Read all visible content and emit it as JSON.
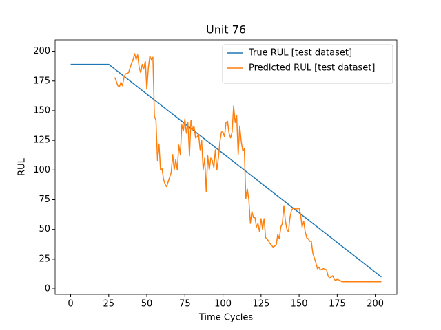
{
  "chart_data": {
    "type": "line",
    "title": "Unit 76",
    "x_label": "Time Cycles",
    "y_label": "RUL",
    "xlim": [
      -10.2,
      214.2
    ],
    "ylim": [
      -4.6,
      209.6
    ],
    "xticks": [
      0,
      25,
      50,
      75,
      100,
      125,
      150,
      175,
      200
    ],
    "yticks": [
      0,
      25,
      50,
      75,
      100,
      125,
      150,
      175,
      200
    ],
    "legend": "upper right",
    "series": [
      {
        "name": "True RUL [test dataset]",
        "color": "#1f77b4",
        "x": [
          0,
          25,
          204
        ],
        "values": [
          189,
          189,
          10
        ]
      },
      {
        "name": "Predicted RUL [test dataset]",
        "color": "#ff7f0e",
        "x": [
          29,
          31,
          32,
          33,
          34,
          35,
          36,
          38,
          40,
          41,
          42,
          43,
          44,
          45,
          46,
          47,
          48,
          49,
          50,
          51,
          52,
          53,
          54,
          55,
          56,
          57,
          58,
          59,
          60,
          61,
          62,
          63,
          64,
          66,
          67,
          68,
          69,
          70,
          71,
          72,
          73,
          74,
          75,
          76,
          77,
          78,
          79,
          80,
          81,
          82,
          83,
          84,
          85,
          86,
          87,
          88,
          89,
          90,
          91,
          92,
          93,
          94,
          95,
          96,
          97,
          98,
          99,
          100,
          101,
          102,
          103,
          104,
          105,
          106,
          107,
          108,
          109,
          110,
          111,
          112,
          113,
          114,
          115,
          116,
          117,
          118,
          119,
          120,
          121,
          122,
          123,
          124,
          125,
          126,
          127,
          128,
          129,
          131,
          133,
          135,
          136,
          137,
          138,
          139,
          140,
          141,
          142,
          143,
          144,
          145,
          146,
          148,
          150,
          151,
          152,
          153,
          154,
          155,
          156,
          157,
          158,
          159,
          160,
          161,
          162,
          163,
          164,
          166,
          168,
          169,
          170,
          171,
          172,
          173,
          174,
          175,
          177,
          178,
          180,
          204
        ],
        "values": [
          178,
          171,
          170,
          174,
          171,
          178,
          181,
          182,
          190,
          193,
          198,
          193,
          197,
          186,
          182,
          189,
          185,
          192,
          168,
          186,
          196,
          193,
          195,
          145,
          142,
          108,
          122,
          100,
          101,
          92,
          88,
          86,
          90,
          98,
          113,
          100,
          109,
          100,
          121,
          113,
          138,
          133,
          143,
          131,
          140,
          112,
          142,
          134,
          137,
          127,
          128,
          130,
          117,
          125,
          100,
          110,
          82,
          112,
          100,
          110,
          108,
          102,
          117,
          100,
          110,
          124,
          132,
          132,
          128,
          140,
          141,
          131,
          127,
          132,
          154,
          140,
          146,
          113,
          137,
          124,
          116,
          118,
          76,
          84,
          75,
          55,
          65,
          60,
          60,
          52,
          55,
          48,
          59,
          50,
          59,
          43,
          42,
          38,
          35,
          37,
          46,
          42,
          52,
          55,
          70,
          57,
          50,
          48,
          60,
          66,
          68,
          67,
          68,
          62,
          52,
          57,
          48,
          43,
          42,
          40,
          40,
          30,
          26,
          22,
          17,
          18,
          16,
          17,
          16,
          11,
          9,
          10,
          11,
          8,
          7,
          8,
          7,
          6,
          6,
          6
        ]
      }
    ]
  }
}
